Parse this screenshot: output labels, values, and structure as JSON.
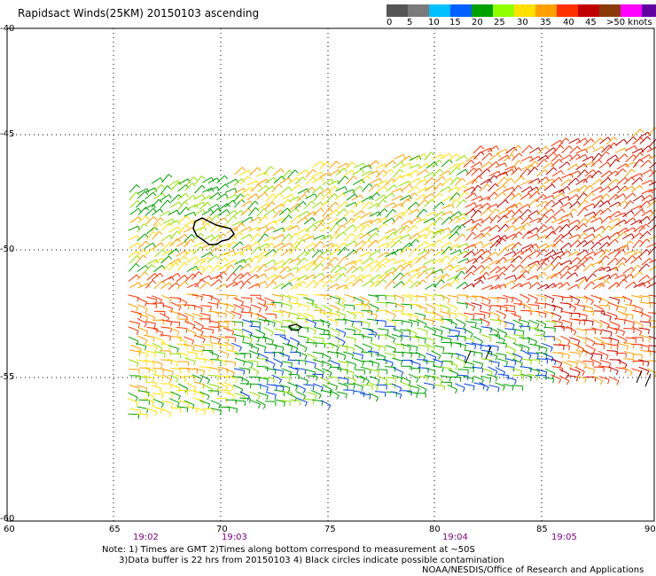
{
  "title": "Rapidsact Winds(25KM) 20150103 ascending",
  "scale": {
    "labels": [
      "0",
      "5",
      "10",
      "15",
      "20",
      "25",
      "30",
      "35",
      "40",
      "45",
      ">50 knots"
    ],
    "colors": [
      "#555555",
      "#7a7a7a",
      "#00bfff",
      "#0060ff",
      "#00a000",
      "#90ff00",
      "#ffe000",
      "#ffa000",
      "#ff3000",
      "#c00000",
      "#8b3a0a",
      "#ff00ff",
      "#6000a0"
    ]
  },
  "axes": {
    "lat_labels": [
      "-40",
      "-45",
      "-50",
      "-55",
      "-60"
    ],
    "lon_labels": [
      "60",
      "65",
      "70",
      "75",
      "80",
      "85",
      "90"
    ]
  },
  "times": [
    "19:02",
    "19:03",
    "19:04",
    "19:05"
  ],
  "notes": [
    "Note: 1) Times are GMT 2)Times along bottom correspond to measurement at ~50S",
    "      3)Data buffer is 22 hrs from 20150103 4) Black circles indicate possible contamination"
  ],
  "credit": "NOAA/NESDIS/Office of Research and Applications"
}
